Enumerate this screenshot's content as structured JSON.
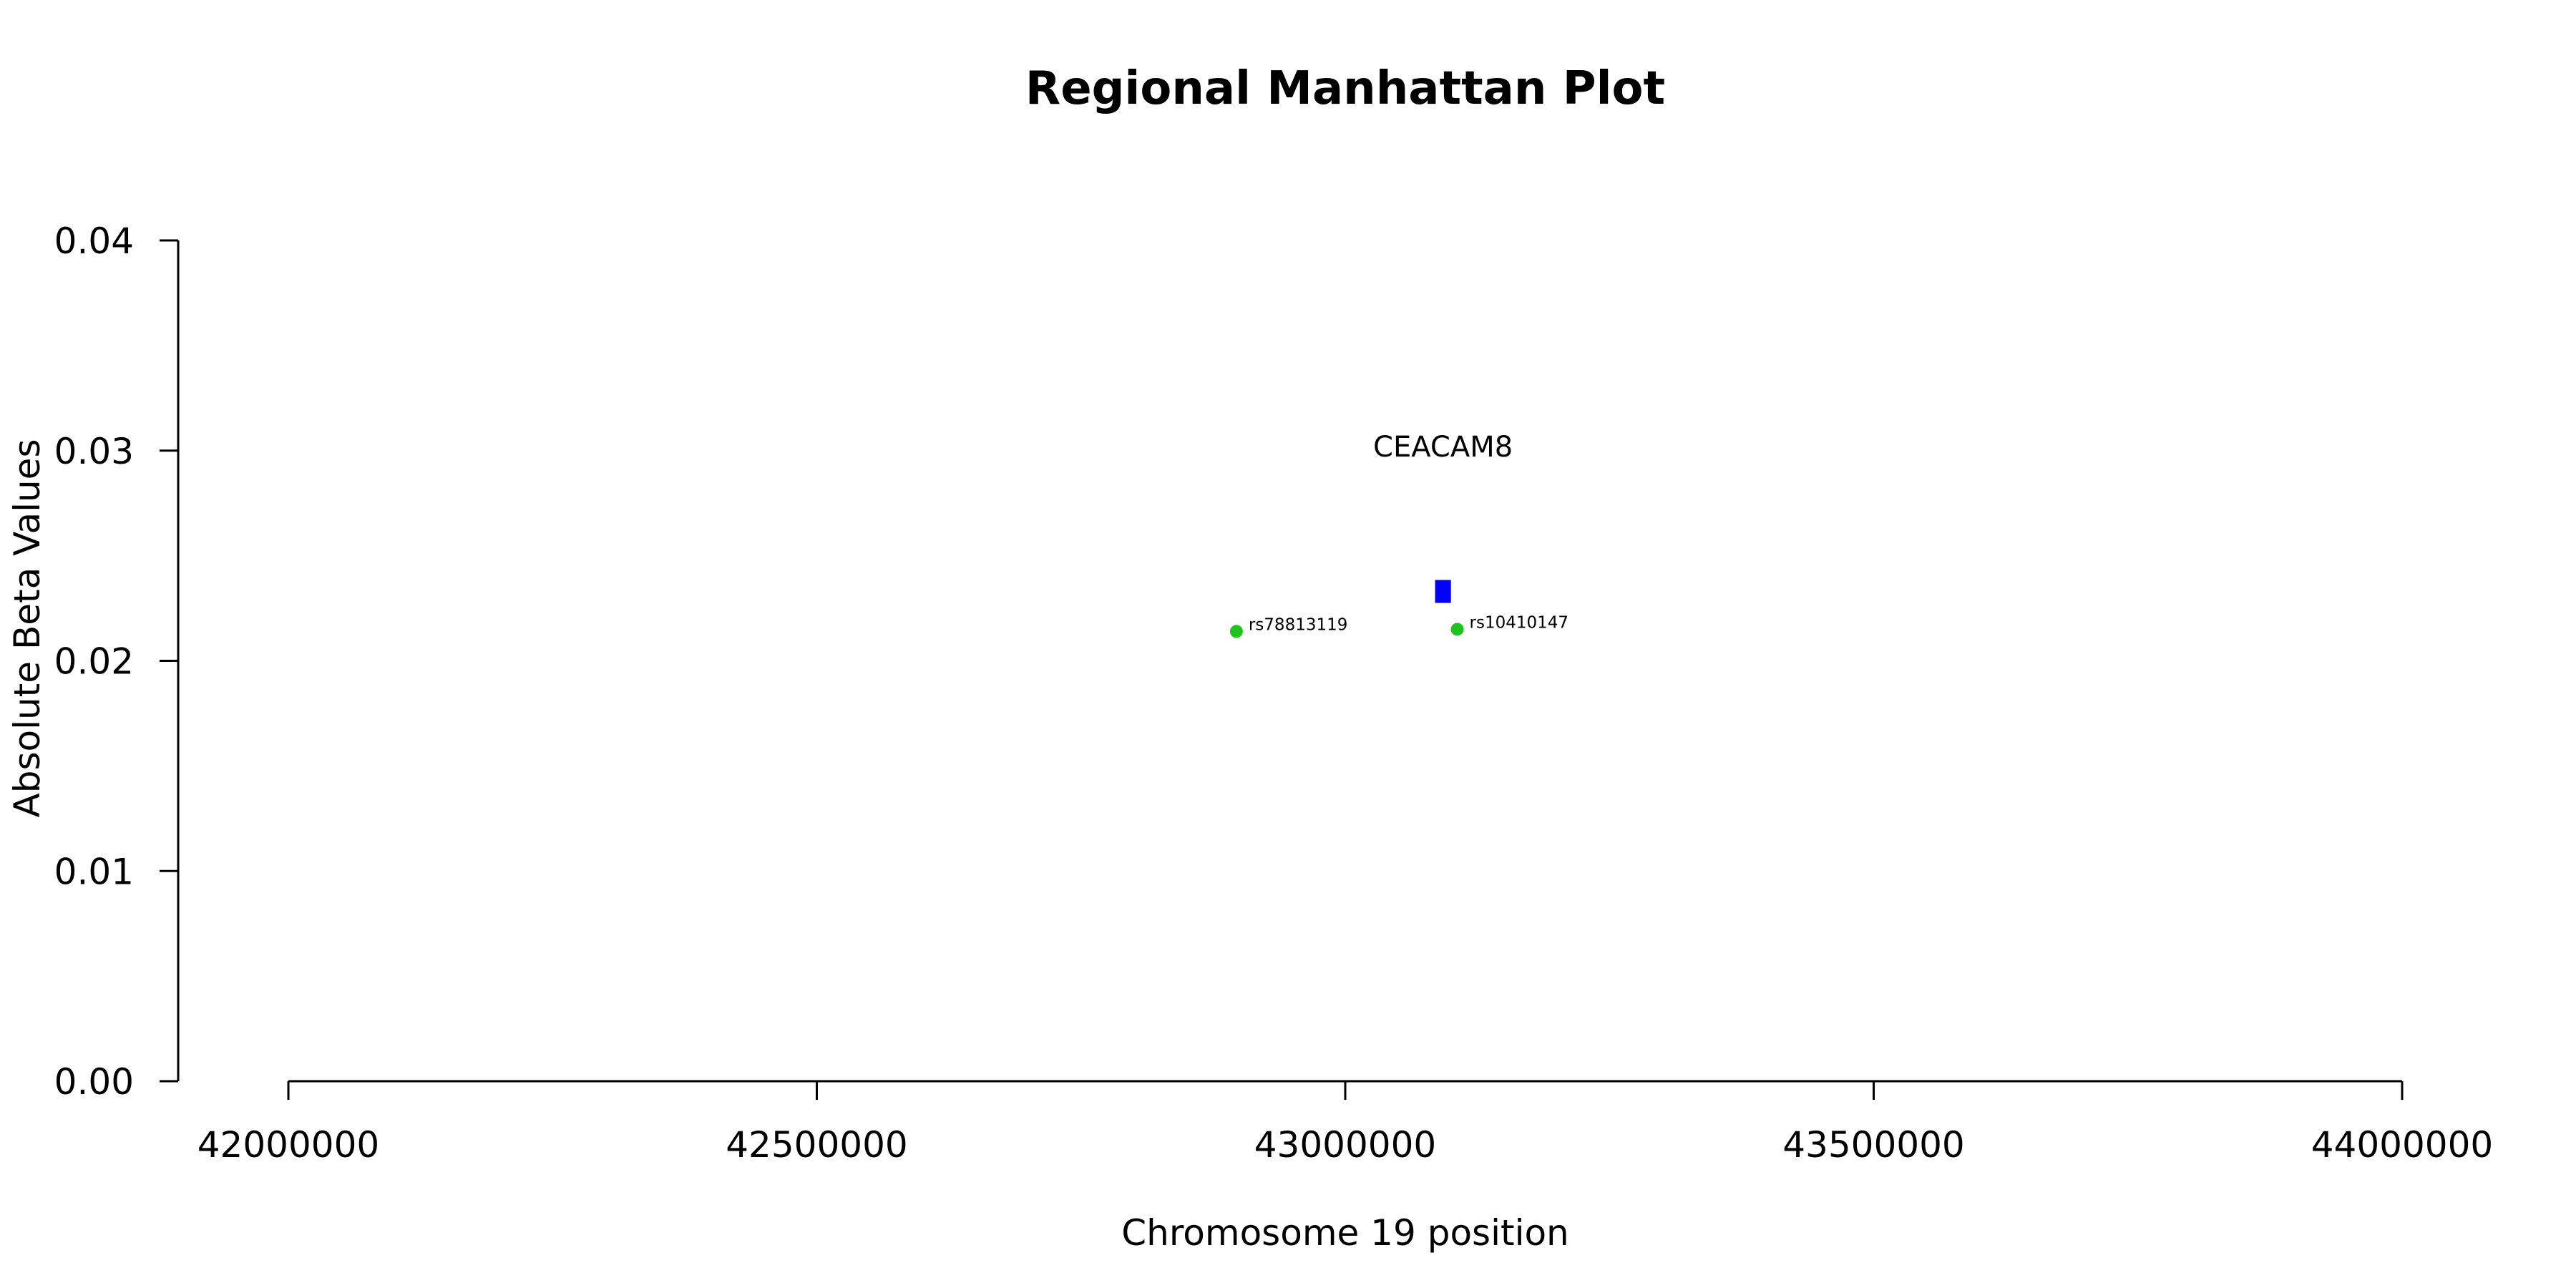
{
  "chart_data": {
    "type": "scatter",
    "title": "Regional Manhattan Plot",
    "xlabel": "Chromosome 19 position",
    "ylabel": "Absolute Beta Values",
    "xlim": [
      42000000,
      44000000
    ],
    "ylim": [
      0,
      0.04
    ],
    "x_ticks": [
      42000000,
      42500000,
      43000000,
      43500000,
      44000000
    ],
    "y_ticks": [
      0.0,
      0.01,
      0.02,
      0.03,
      0.04
    ],
    "x_tick_labels": [
      "42000000",
      "42500000",
      "43000000",
      "43500000",
      "44000000"
    ],
    "y_tick_labels": [
      "0.00",
      "0.01",
      "0.02",
      "0.03",
      "0.04"
    ],
    "grid": false,
    "genes": [
      {
        "label": "CEACAM8",
        "start": 43085000,
        "end": 43100000,
        "value": 0.0233,
        "label_value": 0.0302,
        "color": "#0000ff"
      }
    ],
    "snps": [
      {
        "label": "rs78813119",
        "x": 42897000,
        "y": 0.0214,
        "color": "#1ec31e"
      },
      {
        "label": "rs10410147",
        "x": 43106000,
        "y": 0.0215,
        "color": "#1ec31e"
      }
    ]
  }
}
